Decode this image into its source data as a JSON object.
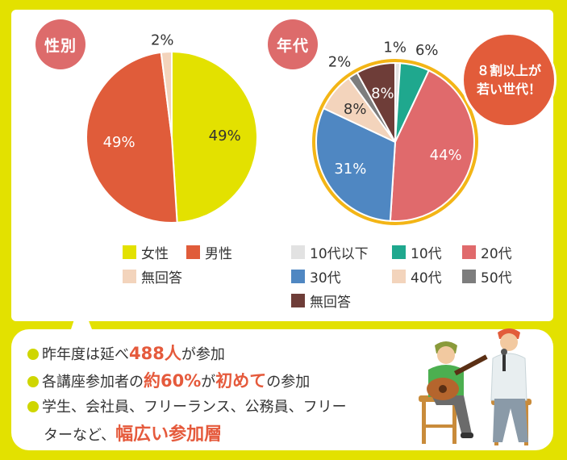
{
  "sections": {
    "gender_title": "性別",
    "age_title": "年代"
  },
  "callout": {
    "line1": "８割以上が",
    "line2": "若い世代！"
  },
  "colors": {
    "background": "#e3e100",
    "female": "#e3e100",
    "male": "#e05c3a",
    "no_answer_gender": "#f3d4bc",
    "age_under10": "#e2e2e2",
    "age_10s": "#1fa88e",
    "age_20s": "#e06a6c",
    "age_30s": "#4f87c2",
    "age_40s": "#f3d4bc",
    "age_50s": "#7d7d7d",
    "age_no_answer": "#6e3d38",
    "highlight": "#e55a3c",
    "accent_ring": "#f3b516"
  },
  "chart_data": [
    {
      "type": "pie",
      "title": "性別",
      "slices": [
        {
          "label": "女性",
          "value": 49,
          "display": "49%",
          "color": "#e3e100"
        },
        {
          "label": "男性",
          "value": 49,
          "display": "49%",
          "color": "#e05c3a"
        },
        {
          "label": "無回答",
          "value": 2,
          "display": "2%",
          "color": "#f3d4bc"
        }
      ],
      "legend": [
        "女性",
        "男性",
        "無回答"
      ],
      "legend_position": "bottom"
    },
    {
      "type": "pie",
      "title": "年代",
      "slices": [
        {
          "label": "10代以下",
          "value": 1,
          "display": "1%",
          "color": "#e2e2e2"
        },
        {
          "label": "10代",
          "value": 6,
          "display": "6%",
          "color": "#1fa88e"
        },
        {
          "label": "20代",
          "value": 44,
          "display": "44%",
          "color": "#e06a6c"
        },
        {
          "label": "30代",
          "value": 31,
          "display": "31%",
          "color": "#4f87c2"
        },
        {
          "label": "40代",
          "value": 8,
          "display": "8%",
          "color": "#f3d4bc"
        },
        {
          "label": "50代",
          "value": 2,
          "display": "2%",
          "color": "#7d7d7d"
        },
        {
          "label": "無回答",
          "value": 8,
          "display": "8%",
          "color": "#6e3d38"
        }
      ],
      "legend": [
        "10代以下",
        "10代",
        "20代",
        "30代",
        "40代",
        "50代",
        "無回答"
      ],
      "legend_position": "bottom"
    }
  ],
  "bullets": {
    "b1": {
      "pre": "昨年度は延べ",
      "hl": "488人",
      "post": "が参加"
    },
    "b2": {
      "pre": "各講座参加者の",
      "hl1": "約60%",
      "mid": "が",
      "hl2": "初めて",
      "post": "の参加"
    },
    "b3": {
      "line1": "学生、会社員、フリーランス、公務員、フリー",
      "line2_pre": "ターなど、",
      "line2_hl": "幅広い参加層"
    }
  },
  "illustration": {
    "icon": "musicians-illustration"
  }
}
